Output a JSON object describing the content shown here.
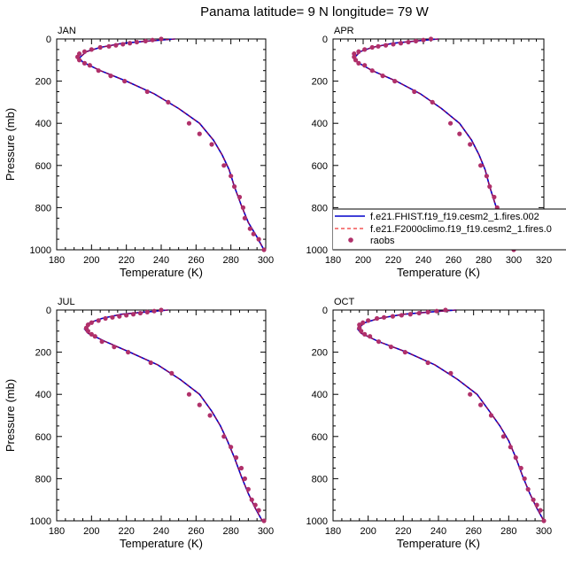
{
  "figure": {
    "title": "Panama  latitude= 9 N longitude= 79 W"
  },
  "legend": {
    "entries": [
      {
        "label": "f.e21.FHIST.f19_f19.cesm2_1.fires.002",
        "color": "#0000cc",
        "style": "solid-line"
      },
      {
        "label": "f.e21.F2000climo.f19_f19.cesm2_1.fires.0",
        "color": "#ee0000",
        "style": "dashed-line"
      },
      {
        "label": "raobs",
        "color": "#b0306a",
        "style": "dot"
      }
    ]
  },
  "colors": {
    "model1": "#0000cc",
    "model2": "#ee0000",
    "raobs": "#b0306a"
  },
  "chart_data": [
    {
      "type": "line",
      "title": "JAN",
      "xlabel": "Temperature (K)",
      "ylabel": "Pressure (mb)",
      "xlim": [
        180,
        300
      ],
      "ylim": [
        1000,
        0
      ],
      "y_reversed": true,
      "xticks": [
        180,
        200,
        220,
        240,
        260,
        280,
        300
      ],
      "yticks": [
        0,
        200,
        400,
        600,
        800,
        1000
      ],
      "series": [
        {
          "name": "f.e21.FHIST.f19_f19.cesm2_1.fires.002",
          "x": [
            248,
            232,
            218,
            205,
            197,
            193,
            195,
            205,
            220,
            236,
            250,
            262,
            270,
            275,
            279,
            282,
            286,
            290,
            295,
            299
          ],
          "y": [
            0,
            10,
            20,
            40,
            60,
            90,
            110,
            150,
            200,
            260,
            330,
            400,
            480,
            550,
            620,
            700,
            790,
            870,
            940,
            1000
          ]
        },
        {
          "name": "f.e21.F2000climo.f19_f19.cesm2_1.fires.0",
          "x": [
            248,
            232,
            218,
            205,
            197,
            193,
            195,
            205,
            220,
            236,
            250,
            262,
            270,
            275,
            279,
            282,
            286,
            290,
            295,
            299
          ],
          "y": [
            0,
            10,
            20,
            40,
            60,
            90,
            110,
            150,
            200,
            260,
            330,
            400,
            480,
            550,
            620,
            700,
            790,
            870,
            940,
            1000
          ]
        },
        {
          "name": "raobs",
          "x": [
            240,
            235,
            231,
            226,
            222,
            218,
            214,
            210,
            205,
            200,
            196,
            193,
            192,
            193,
            196,
            199,
            204,
            211,
            219,
            232,
            244,
            256,
            262,
            269,
            276,
            280,
            282,
            285,
            287,
            288,
            291,
            293,
            296,
            299
          ],
          "y": [
            0,
            5,
            10,
            15,
            20,
            25,
            30,
            35,
            40,
            50,
            60,
            70,
            85,
            100,
            115,
            125,
            150,
            175,
            200,
            250,
            300,
            400,
            450,
            500,
            600,
            650,
            700,
            750,
            800,
            850,
            900,
            925,
            950,
            1000
          ]
        }
      ]
    },
    {
      "type": "line",
      "title": "APR",
      "xlabel": "Temperature (K)",
      "ylabel": "",
      "xlim": [
        180,
        320
      ],
      "ylim": [
        1000,
        0
      ],
      "y_reversed": true,
      "xticks": [
        180,
        200,
        220,
        240,
        260,
        280,
        300,
        320
      ],
      "yticks": [
        0,
        200,
        400,
        600,
        800,
        1000
      ],
      "series": [
        {
          "name": "f.e21.FHIST.f19_f19.cesm2_1.fires.002",
          "x": [
            250,
            234,
            220,
            206,
            198,
            194,
            196,
            206,
            222,
            238,
            252,
            264,
            272,
            277,
            281,
            284,
            288,
            292,
            296,
            300
          ],
          "y": [
            0,
            10,
            20,
            40,
            60,
            90,
            110,
            150,
            200,
            260,
            330,
            400,
            480,
            550,
            620,
            700,
            790,
            870,
            940,
            1000
          ]
        },
        {
          "name": "f.e21.F2000climo.f19_f19.cesm2_1.fires.0",
          "x": [
            250,
            234,
            220,
            206,
            198,
            194,
            196,
            206,
            222,
            238,
            252,
            264,
            272,
            277,
            281,
            284,
            288,
            292,
            296,
            300
          ],
          "y": [
            0,
            10,
            20,
            40,
            60,
            90,
            110,
            150,
            200,
            260,
            330,
            400,
            480,
            550,
            620,
            700,
            790,
            870,
            940,
            1000
          ]
        },
        {
          "name": "raobs",
          "x": [
            245,
            240,
            235,
            230,
            225,
            220,
            215,
            210,
            206,
            201,
            197,
            194,
            194,
            195,
            197,
            201,
            206,
            213,
            221,
            234,
            246,
            258,
            264,
            271,
            278,
            282,
            284,
            287,
            289,
            291,
            293,
            295,
            297,
            300
          ],
          "y": [
            0,
            5,
            10,
            15,
            20,
            25,
            30,
            35,
            40,
            50,
            60,
            70,
            85,
            100,
            115,
            125,
            150,
            175,
            200,
            250,
            300,
            400,
            450,
            500,
            600,
            650,
            700,
            750,
            800,
            850,
            900,
            925,
            950,
            1000
          ]
        }
      ]
    },
    {
      "type": "line",
      "title": "JUL",
      "xlabel": "Temperature (K)",
      "ylabel": "Pressure (mb)",
      "xlim": [
        180,
        300
      ],
      "ylim": [
        1000,
        0
      ],
      "y_reversed": true,
      "xticks": [
        180,
        200,
        220,
        240,
        260,
        280,
        300
      ],
      "yticks": [
        0,
        200,
        400,
        600,
        800,
        1000
      ],
      "series": [
        {
          "name": "f.e21.FHIST.f19_f19.cesm2_1.fires.002",
          "x": [
            244,
            230,
            217,
            206,
            199,
            196,
            198,
            208,
            222,
            238,
            251,
            262,
            269,
            274,
            278,
            282,
            286,
            290,
            294,
            298
          ],
          "y": [
            0,
            10,
            20,
            40,
            60,
            90,
            110,
            150,
            200,
            260,
            330,
            400,
            480,
            550,
            620,
            700,
            790,
            870,
            940,
            1000
          ]
        },
        {
          "name": "f.e21.F2000climo.f19_f19.cesm2_1.fires.0",
          "x": [
            244,
            230,
            217,
            206,
            199,
            196,
            198,
            208,
            222,
            238,
            251,
            262,
            269,
            274,
            278,
            282,
            286,
            290,
            294,
            298
          ],
          "y": [
            0,
            10,
            20,
            40,
            60,
            90,
            110,
            150,
            200,
            260,
            330,
            400,
            480,
            550,
            620,
            700,
            790,
            870,
            940,
            1000
          ]
        },
        {
          "name": "raobs",
          "x": [
            240,
            236,
            232,
            228,
            224,
            220,
            216,
            212,
            208,
            204,
            200,
            198,
            197,
            198,
            200,
            202,
            206,
            213,
            221,
            234,
            246,
            256,
            262,
            268,
            276,
            280,
            283,
            286,
            288,
            290,
            292,
            294,
            296,
            299
          ],
          "y": [
            0,
            5,
            10,
            15,
            20,
            25,
            30,
            35,
            40,
            50,
            60,
            70,
            85,
            100,
            115,
            125,
            150,
            175,
            200,
            250,
            300,
            400,
            450,
            500,
            600,
            650,
            700,
            750,
            800,
            850,
            900,
            925,
            950,
            1000
          ]
        }
      ]
    },
    {
      "type": "line",
      "title": "OCT",
      "xlabel": "Temperature (K)",
      "ylabel": "",
      "xlim": [
        180,
        300
      ],
      "ylim": [
        1000,
        0
      ],
      "y_reversed": true,
      "xticks": [
        180,
        200,
        220,
        240,
        260,
        280,
        300
      ],
      "yticks": [
        0,
        200,
        400,
        600,
        800,
        1000
      ],
      "series": [
        {
          "name": "f.e21.FHIST.f19_f19.cesm2_1.fires.002",
          "x": [
            250,
            234,
            220,
            206,
            198,
            194,
            196,
            206,
            222,
            238,
            251,
            262,
            269,
            275,
            280,
            284,
            288,
            292,
            296,
            300
          ],
          "y": [
            0,
            10,
            20,
            40,
            60,
            90,
            110,
            150,
            200,
            260,
            330,
            400,
            480,
            550,
            620,
            700,
            790,
            870,
            940,
            1000
          ]
        },
        {
          "name": "f.e21.F2000climo.f19_f19.cesm2_1.fires.0",
          "x": [
            250,
            234,
            220,
            206,
            198,
            194,
            196,
            206,
            222,
            238,
            251,
            262,
            269,
            275,
            280,
            284,
            288,
            292,
            296,
            300
          ],
          "y": [
            0,
            10,
            20,
            40,
            60,
            90,
            110,
            150,
            200,
            260,
            330,
            400,
            480,
            550,
            620,
            700,
            790,
            870,
            940,
            1000
          ]
        },
        {
          "name": "raobs",
          "x": [
            244,
            239,
            234,
            229,
            224,
            219,
            214,
            209,
            205,
            200,
            197,
            195,
            195,
            196,
            198,
            201,
            206,
            213,
            221,
            234,
            247,
            258,
            264,
            270,
            277,
            281,
            284,
            287,
            289,
            291,
            294,
            296,
            298,
            300
          ],
          "y": [
            0,
            5,
            10,
            15,
            20,
            25,
            30,
            35,
            40,
            50,
            60,
            70,
            85,
            100,
            115,
            125,
            150,
            175,
            200,
            250,
            300,
            400,
            450,
            500,
            600,
            650,
            700,
            750,
            800,
            850,
            900,
            925,
            950,
            1000
          ]
        }
      ]
    }
  ]
}
